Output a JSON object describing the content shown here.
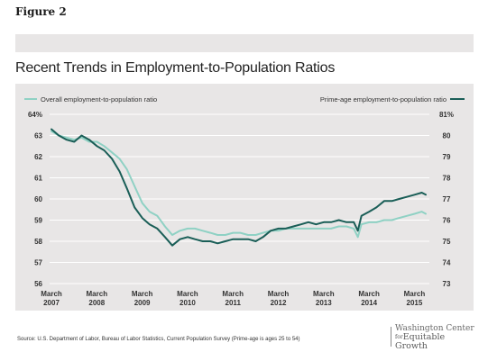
{
  "figure_label": "Figure 2",
  "chart_data": {
    "type": "line",
    "title": "Recent Trends in Employment-to-Population Ratios",
    "x_tick_labels": [
      {
        "month": "March",
        "year": "2007",
        "x": 2007.167
      },
      {
        "month": "March",
        "year": "2008",
        "x": 2008.167
      },
      {
        "month": "March",
        "year": "2009",
        "x": 2009.167
      },
      {
        "month": "March",
        "year": "2010",
        "x": 2010.167
      },
      {
        "month": "March",
        "year": "2011",
        "x": 2011.167
      },
      {
        "month": "March",
        "year": "2012",
        "x": 2012.167
      },
      {
        "month": "March",
        "year": "2013",
        "x": 2013.167
      },
      {
        "month": "March",
        "year": "2014",
        "x": 2014.167
      },
      {
        "month": "March",
        "year": "2015",
        "x": 2015.167
      }
    ],
    "xlim": [
      2007.167,
      2015.417
    ],
    "left_axis": {
      "ylim": [
        56,
        64
      ],
      "ticks": [
        56,
        57,
        58,
        59,
        60,
        61,
        62,
        63,
        64
      ],
      "tick_labels": [
        "56",
        "57",
        "58",
        "59",
        "60",
        "61",
        "62",
        "63",
        "64%"
      ]
    },
    "right_axis": {
      "ylim": [
        73,
        81
      ],
      "ticks": [
        73,
        74,
        75,
        76,
        77,
        78,
        79,
        80,
        81
      ],
      "tick_labels": [
        "73",
        "74",
        "75",
        "76",
        "77",
        "78",
        "79",
        "80",
        "81%"
      ]
    },
    "grid": true,
    "legend": "top",
    "series": [
      {
        "name": "Overall employment-to-population ratio",
        "axis": "left",
        "color": "#8fd1c4",
        "x": [
          2007.167,
          2007.33,
          2007.5,
          2007.67,
          2007.83,
          2008.0,
          2008.17,
          2008.33,
          2008.5,
          2008.67,
          2008.83,
          2009.0,
          2009.17,
          2009.33,
          2009.5,
          2009.67,
          2009.83,
          2010.0,
          2010.17,
          2010.33,
          2010.5,
          2010.67,
          2010.83,
          2011.0,
          2011.17,
          2011.33,
          2011.5,
          2011.67,
          2011.83,
          2012.0,
          2012.17,
          2012.33,
          2012.5,
          2012.67,
          2012.83,
          2013.0,
          2013.17,
          2013.33,
          2013.5,
          2013.67,
          2013.83,
          2013.92,
          2014.0,
          2014.17,
          2014.33,
          2014.5,
          2014.67,
          2014.83,
          2015.0,
          2015.17,
          2015.33,
          2015.417
        ],
        "values": [
          63.2,
          63.0,
          62.9,
          62.8,
          62.9,
          62.7,
          62.7,
          62.5,
          62.2,
          61.9,
          61.4,
          60.6,
          59.8,
          59.4,
          59.2,
          58.7,
          58.3,
          58.5,
          58.6,
          58.6,
          58.5,
          58.4,
          58.3,
          58.3,
          58.4,
          58.4,
          58.3,
          58.3,
          58.4,
          58.5,
          58.5,
          58.6,
          58.6,
          58.6,
          58.6,
          58.6,
          58.6,
          58.6,
          58.7,
          58.7,
          58.6,
          58.2,
          58.8,
          58.9,
          58.9,
          59.0,
          59.0,
          59.1,
          59.2,
          59.3,
          59.4,
          59.3
        ]
      },
      {
        "name": "Prime-age employment-to-population ratio",
        "axis": "right",
        "color": "#1a5e57",
        "x": [
          2007.167,
          2007.33,
          2007.5,
          2007.67,
          2007.83,
          2008.0,
          2008.17,
          2008.33,
          2008.5,
          2008.67,
          2008.83,
          2009.0,
          2009.17,
          2009.33,
          2009.5,
          2009.67,
          2009.83,
          2010.0,
          2010.17,
          2010.33,
          2010.5,
          2010.67,
          2010.83,
          2011.0,
          2011.17,
          2011.33,
          2011.5,
          2011.67,
          2011.83,
          2012.0,
          2012.17,
          2012.33,
          2012.5,
          2012.67,
          2012.83,
          2013.0,
          2013.17,
          2013.33,
          2013.5,
          2013.67,
          2013.83,
          2013.92,
          2014.0,
          2014.17,
          2014.33,
          2014.5,
          2014.67,
          2014.83,
          2015.0,
          2015.17,
          2015.33,
          2015.417
        ],
        "values": [
          80.3,
          80.0,
          79.8,
          79.7,
          80.0,
          79.8,
          79.5,
          79.3,
          78.9,
          78.3,
          77.5,
          76.6,
          76.1,
          75.8,
          75.6,
          75.2,
          74.8,
          75.1,
          75.2,
          75.1,
          75.0,
          75.0,
          74.9,
          75.0,
          75.1,
          75.1,
          75.1,
          75.0,
          75.2,
          75.5,
          75.6,
          75.6,
          75.7,
          75.8,
          75.9,
          75.8,
          75.9,
          75.9,
          76.0,
          75.9,
          75.9,
          75.5,
          76.2,
          76.4,
          76.6,
          76.9,
          76.9,
          77.0,
          77.1,
          77.2,
          77.3,
          77.2
        ]
      }
    ]
  },
  "source": "Source: U.S. Department of Labor, Bureau of Labor Statistics, Current Population Survey (Prime-age is ages 25 to 54)",
  "logo": {
    "line1": "Washington Center",
    "line2_prefix": "for",
    "line2": "Equitable Growth"
  }
}
